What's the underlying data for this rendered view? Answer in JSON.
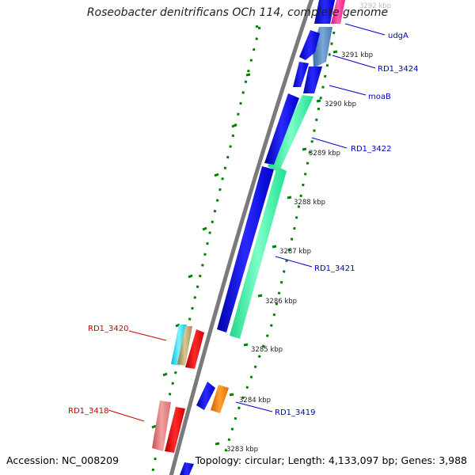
{
  "title": "Roseobacter denitrificans OCh 114, complete genome",
  "footer": {
    "accession": "Accession: NC_008209",
    "stats": "Topology: circular; Length: 4,133,097 bp; Genes: 3,988"
  },
  "colors": {
    "backbone": "#808080",
    "tick": "#008000",
    "reverse_label": "#cc0000",
    "forward_label": "#0000cc",
    "scale_label": "#222222"
  },
  "scale_ticks": [
    {
      "label": "3292 kbp",
      "faded": true
    },
    {
      "label": "3291 kbp"
    },
    {
      "label": "3290 kbp"
    },
    {
      "label": "3289 kbp"
    },
    {
      "label": "3288 kbp"
    },
    {
      "label": "3287 kbp"
    },
    {
      "label": "3286 kbp"
    },
    {
      "label": "3285 kbp"
    },
    {
      "label": "3284 kbp"
    },
    {
      "label": "3283 kbp"
    }
  ],
  "gene_labels": [
    {
      "name": "udgA",
      "strand": "forward"
    },
    {
      "name": "RD1_3424",
      "strand": "forward"
    },
    {
      "name": "moaB",
      "strand": "forward"
    },
    {
      "name": "RD1_3422",
      "strand": "forward"
    },
    {
      "name": "RD1_3421",
      "strand": "forward"
    },
    {
      "name": "RD1_3420",
      "strand": "reverse"
    },
    {
      "name": "RD1_3419",
      "strand": "forward"
    },
    {
      "name": "RD1_3418",
      "strand": "reverse"
    }
  ]
}
